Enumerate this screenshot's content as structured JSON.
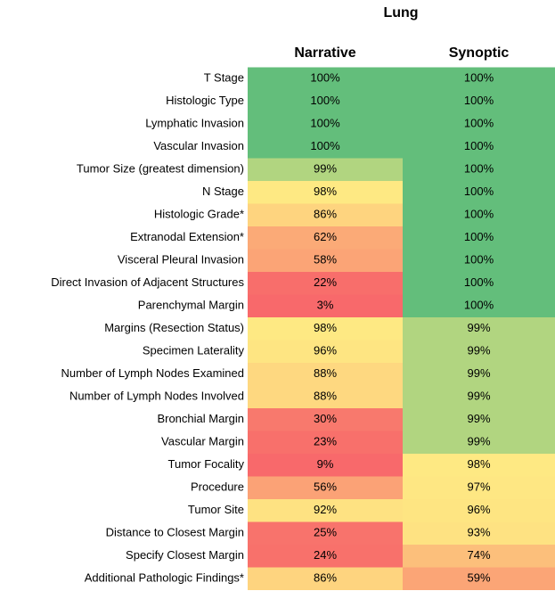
{
  "chart_data": {
    "type": "heatmap",
    "title": "Lung",
    "categories": [
      "T Stage",
      "Histologic Type",
      "Lymphatic Invasion",
      "Vascular Invasion",
      "Tumor Size (greatest dimension)",
      "N Stage",
      "Histologic Grade*",
      "Extranodal Extension*",
      "Visceral Pleural Invasion",
      "Direct Invasion of Adjacent Structures",
      "Parenchymal Margin",
      "Margins (Resection Status)",
      "Specimen Laterality",
      "Number of Lymph Nodes Examined",
      "Number of Lymph Nodes Involved",
      "Bronchial Margin",
      "Vascular Margin",
      "Tumor Focality",
      "Procedure",
      "Tumor Site",
      "Distance to Closest Margin",
      "Specify Closest Margin",
      "Additional Pathologic Findings*"
    ],
    "series": [
      {
        "name": "Narrative",
        "values": [
          100,
          100,
          100,
          100,
          99,
          98,
          86,
          62,
          58,
          22,
          3,
          98,
          96,
          88,
          88,
          30,
          23,
          9,
          56,
          92,
          25,
          24,
          86
        ],
        "value_labels": [
          "100%",
          "100%",
          "100%",
          "100%",
          "99%",
          "98%",
          "86%",
          "62%",
          "58%",
          "22%",
          "3%",
          "98%",
          "96%",
          "88%",
          "88%",
          "30%",
          "23%",
          "9%",
          "56%",
          "92%",
          "25%",
          "24%",
          "86%"
        ],
        "colors": [
          "#63be7b",
          "#63be7b",
          "#63be7b",
          "#63be7b",
          "#b1d580",
          "#fee983",
          "#fed47f",
          "#fbaa77",
          "#fba476",
          "#f86e6b",
          "#f8696b",
          "#fee983",
          "#fee582",
          "#fed880",
          "#fed880",
          "#f8796d",
          "#f8706b",
          "#f8696b",
          "#fba276",
          "#fee282",
          "#f8736c",
          "#f8716b",
          "#fed47f"
        ]
      },
      {
        "name": "Synoptic",
        "values": [
          100,
          100,
          100,
          100,
          100,
          100,
          100,
          100,
          100,
          100,
          100,
          99,
          99,
          99,
          99,
          99,
          99,
          98,
          97,
          96,
          93,
          74,
          59
        ],
        "value_labels": [
          "100%",
          "100%",
          "100%",
          "100%",
          "100%",
          "100%",
          "100%",
          "100%",
          "100%",
          "100%",
          "100%",
          "99%",
          "99%",
          "99%",
          "99%",
          "99%",
          "99%",
          "98%",
          "97%",
          "96%",
          "93%",
          "74%",
          "59%"
        ],
        "colors": [
          "#63be7b",
          "#63be7b",
          "#63be7b",
          "#63be7b",
          "#63be7b",
          "#63be7b",
          "#63be7b",
          "#63be7b",
          "#63be7b",
          "#63be7b",
          "#63be7b",
          "#b1d580",
          "#b1d580",
          "#b1d580",
          "#b1d580",
          "#b1d580",
          "#b1d580",
          "#fee983",
          "#fee783",
          "#fee582",
          "#fee282",
          "#fcbf7b",
          "#fba576"
        ]
      }
    ]
  }
}
